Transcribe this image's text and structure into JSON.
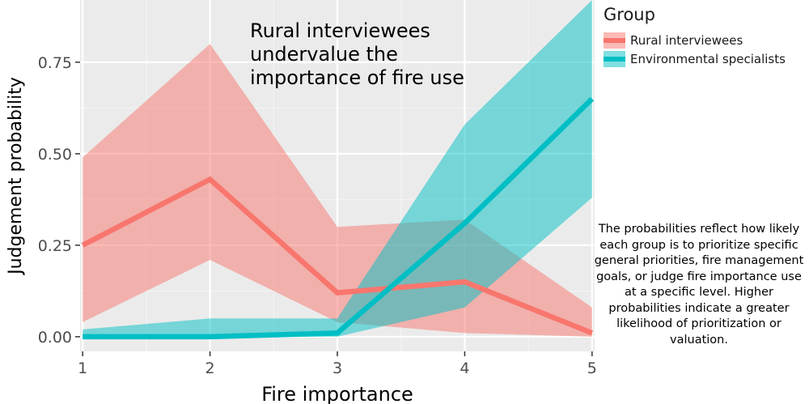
{
  "chart_data": {
    "type": "line",
    "title": "",
    "xlabel": "Fire importance",
    "ylabel": "Judgement probability",
    "x": [
      1,
      2,
      3,
      4,
      5
    ],
    "xlim": [
      0.98,
      5.02
    ],
    "ylim": [
      -0.04,
      0.92
    ],
    "xticks": [
      1,
      2,
      3,
      4,
      5
    ],
    "yticks": [
      0.0,
      0.25,
      0.5,
      0.75
    ],
    "ytick_labels": [
      "0.00",
      "0.25",
      "0.50",
      "0.75"
    ],
    "grid": true,
    "legend_placement": "right",
    "legend_title": "Group",
    "series": [
      {
        "name": "Rural interviewees",
        "color": "#F8766D",
        "values": [
          0.25,
          0.43,
          0.12,
          0.15,
          0.01
        ],
        "lower": [
          0.04,
          0.21,
          0.04,
          0.01,
          0.0
        ],
        "upper": [
          0.49,
          0.8,
          0.3,
          0.32,
          0.08
        ]
      },
      {
        "name": "Environmental specialists",
        "color": "#00BFC4",
        "values": [
          0.0,
          0.0,
          0.01,
          0.31,
          0.65
        ],
        "lower": [
          0.0,
          0.0,
          0.0,
          0.08,
          0.38
        ],
        "upper": [
          0.02,
          0.05,
          0.05,
          0.58,
          0.92
        ]
      }
    ],
    "annotation": "Rural interviewees undervalue the importance of fire use"
  },
  "caption": "The probabilities reflect how likely each group is to prioritize specific general priorities, fire management goals, or judge fire importance use at a specific level. Higher probabilities indicate a greater likelihood of prioritization or valuation."
}
